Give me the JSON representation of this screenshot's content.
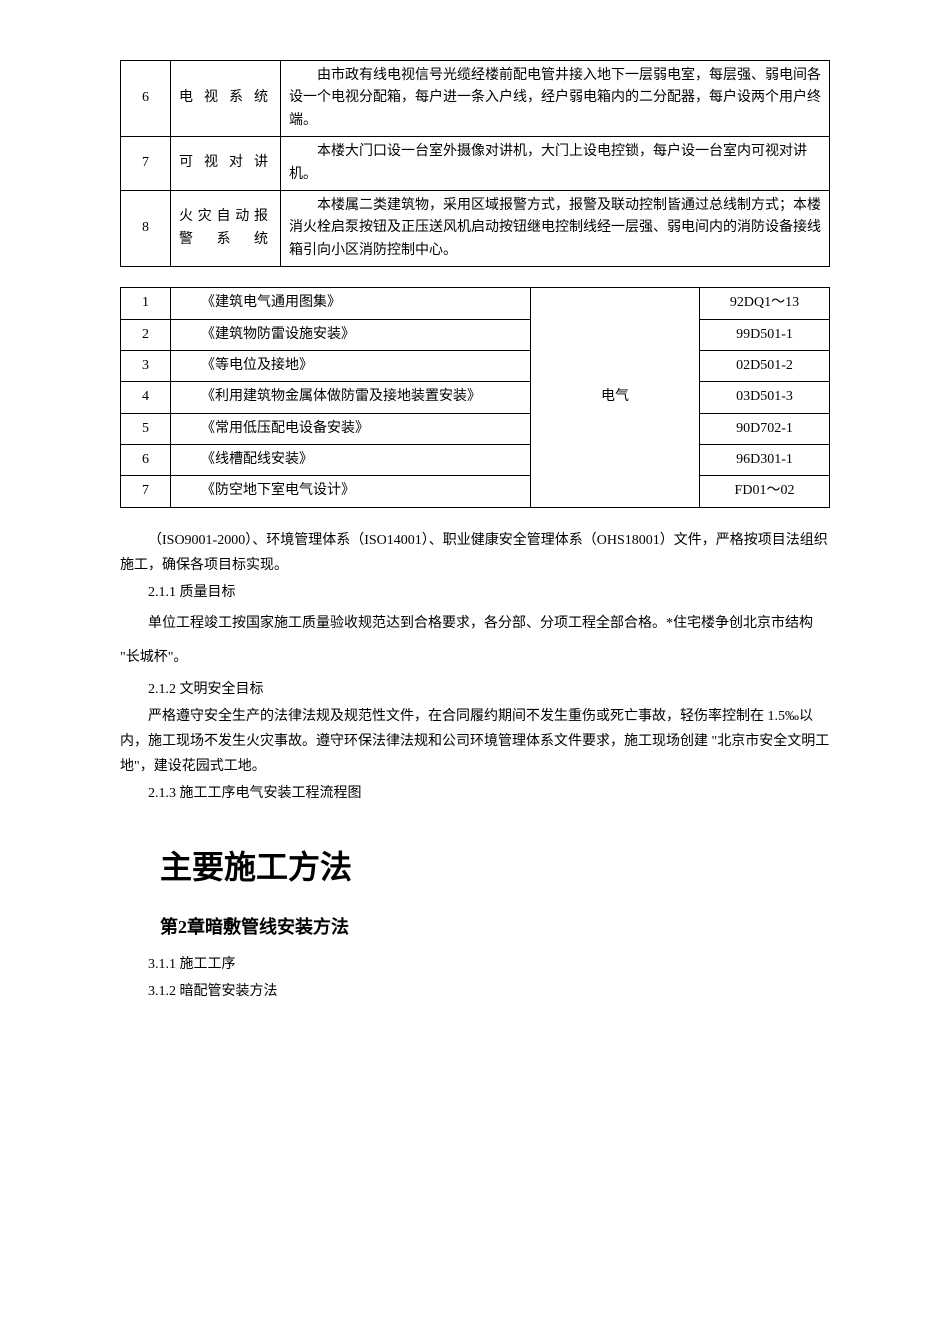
{
  "table1": {
    "rows": [
      {
        "num": "6",
        "system": "电视系统",
        "desc": "由市政有线电视信号光缆经楼前配电管井接入地下一层弱电室，每层强、弱电间各设一个电视分配箱，每户进一条入户线，经户弱电箱内的二分配器，每户设两个用户终端。"
      },
      {
        "num": "7",
        "system": "可视对讲",
        "desc": "本楼大门口设一台室外摄像对讲机，大门上设电控锁，每户设一台室内可视对讲机。"
      },
      {
        "num": "8",
        "system": "火灾自动报警系统",
        "desc": "本楼属二类建筑物，采用区域报警方式，报警及联动控制皆通过总线制方式；本楼消火栓启泵按钮及正压送风机启动按钮继电控制线经一层强、弱电间内的消防设备接线箱引向小区消防控制中心。"
      }
    ]
  },
  "table2": {
    "category": "电气",
    "rows": [
      {
        "num": "1",
        "title": "《建筑电气通用图集》",
        "code": "92DQ1～13"
      },
      {
        "num": "2",
        "title": "《建筑物防雷设施安装》",
        "code": "99D501-1"
      },
      {
        "num": "3",
        "title": "《等电位及接地》",
        "code": "02D501-2"
      },
      {
        "num": "4",
        "title": "《利用建筑物金属体做防雷及接地装置安装》",
        "code": "03D501-3"
      },
      {
        "num": "5",
        "title": "《常用低压配电设备安装》",
        "code": "90D702-1"
      },
      {
        "num": "6",
        "title": "《线槽配线安装》",
        "code": "96D301-1"
      },
      {
        "num": "7",
        "title": "《防空地下室电气设计》",
        "code": "FD01～02"
      }
    ]
  },
  "paragraphs": {
    "p1": "（ISO9001-2000）、环境管理体系（ISO14001）、职业健康安全管理体系（OHS18001）文件，严格按项目法组织施工，确保各项目标实现。",
    "s211_title": "2.1.1 质量目标",
    "s211_body": "单位工程竣工按国家施工质量验收规范达到合格要求，各分部、分项工程全部合格。*住宅楼争创北京市结构 \"长城杯\"。",
    "s212_title": "2.1.2 文明安全目标",
    "s212_body": "严格遵守安全生产的法律法规及规范性文件，在合同履约期间不发生重伤或死亡事故，轻伤率控制在 1.5‰以内，施工现场不发生火灾事故。遵守环保法律法规和公司环境管理体系文件要求，施工现场创建 \"北京市安全文明工地\"，建设花园式工地。",
    "s213_title": "2.1.3 施工工序电气安装工程流程图",
    "h1": "主要施工方法",
    "h2": "第2章暗敷管线安装方法",
    "s311": "3.1.1 施工工序",
    "s312": "3.1.2 暗配管安装方法"
  }
}
